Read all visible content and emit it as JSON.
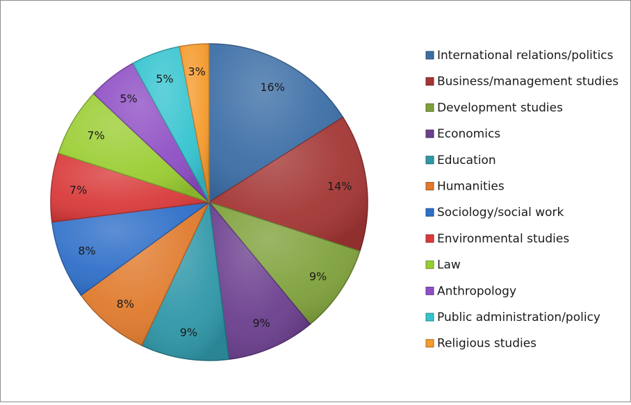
{
  "chart_data": {
    "type": "pie",
    "title": "",
    "legend_position": "right",
    "slices": [
      {
        "label": "International relations/politics",
        "value": 16,
        "display": "16%",
        "color": "#3c6ea6"
      },
      {
        "label": "Business/management studies",
        "value": 14,
        "display": "14%",
        "color": "#a33634"
      },
      {
        "label": "Development studies",
        "value": 9,
        "display": "9%",
        "color": "#7fa13b"
      },
      {
        "label": "Economics",
        "value": 9,
        "display": "9%",
        "color": "#6b3f8e"
      },
      {
        "label": "Education",
        "value": 9,
        "display": "9%",
        "color": "#2f97a8"
      },
      {
        "label": "Humanities",
        "value": 8,
        "display": "8%",
        "color": "#e07b2e"
      },
      {
        "label": "Sociology/social work",
        "value": 8,
        "display": "8%",
        "color": "#2f6fc8"
      },
      {
        "label": "Environmental studies",
        "value": 7,
        "display": "7%",
        "color": "#d93a3a"
      },
      {
        "label": "Law",
        "value": 7,
        "display": "7%",
        "color": "#9acd32"
      },
      {
        "label": "Anthropology",
        "value": 5,
        "display": "5%",
        "color": "#8e4ec4"
      },
      {
        "label": "Public administration/policy",
        "value": 5,
        "display": "5%",
        "color": "#35c4cf"
      },
      {
        "label": "Religious studies",
        "value": 3,
        "display": "3%",
        "color": "#f59a2c"
      }
    ]
  }
}
